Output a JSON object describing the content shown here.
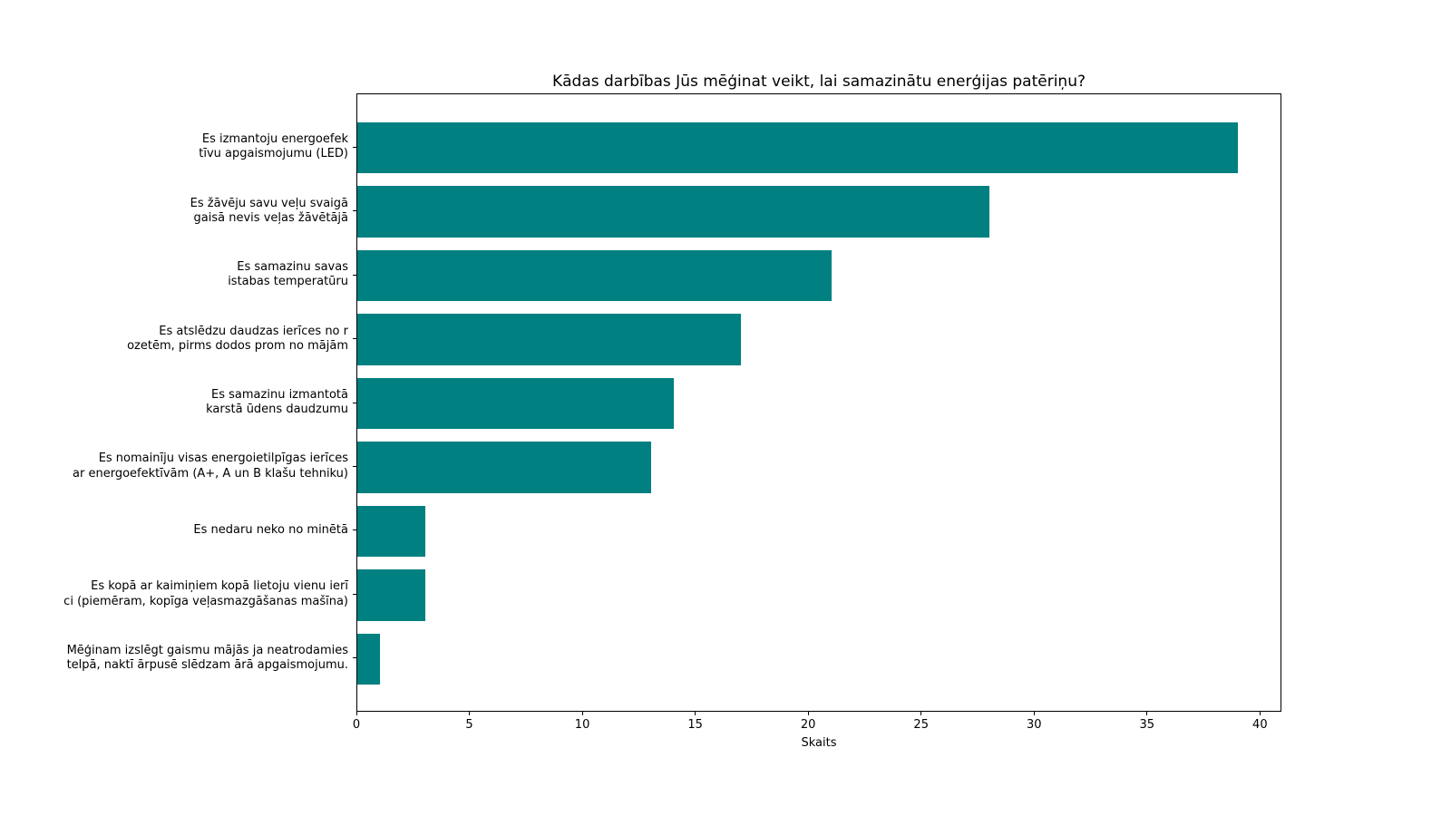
{
  "chart_data": {
    "type": "bar",
    "orientation": "horizontal",
    "title": "Kādas darbības Jūs mēģinat veikt, lai samazinātu enerģijas patēriņu?",
    "xlabel": "Skaits",
    "ylabel": "",
    "bar_color": "#008080",
    "grid": false,
    "legend": null,
    "xlim": [
      0,
      40.95
    ],
    "xticks": [
      0,
      5,
      10,
      15,
      20,
      25,
      30,
      35,
      40
    ],
    "categories": [
      "Es izmantoju energoefek\ntīvu apgaismojumu (LED)",
      "Es žāvēju savu veļu svaigā\ngaisā nevis veļas žāvētājā",
      "Es samazinu savas\nistabas temperatūru",
      "Es atslēdzu daudzas ierīces no r\nozetēm, pirms dodos prom no mājām",
      "Es samazinu izmantotā\nkarstā ūdens daudzumu",
      "Es nomainīju visas energoietilpīgas ierīces\nar energoefektīvām (A+, A un B klašu tehniku)",
      "Es nedaru neko no minētā",
      "Es kopā ar kaimiņiem kopā lietoju vienu ierī\nci (piemēram, kopīga veļasmazgāšanas mašīna)",
      "Mēģinam izslēgt gaismu mājās ja neatrodamies\ntelpā, naktī ārpusē slēdzam ārā apgaismojumu."
    ],
    "values": [
      39,
      28,
      21,
      17,
      14,
      13,
      3,
      3,
      1
    ]
  }
}
